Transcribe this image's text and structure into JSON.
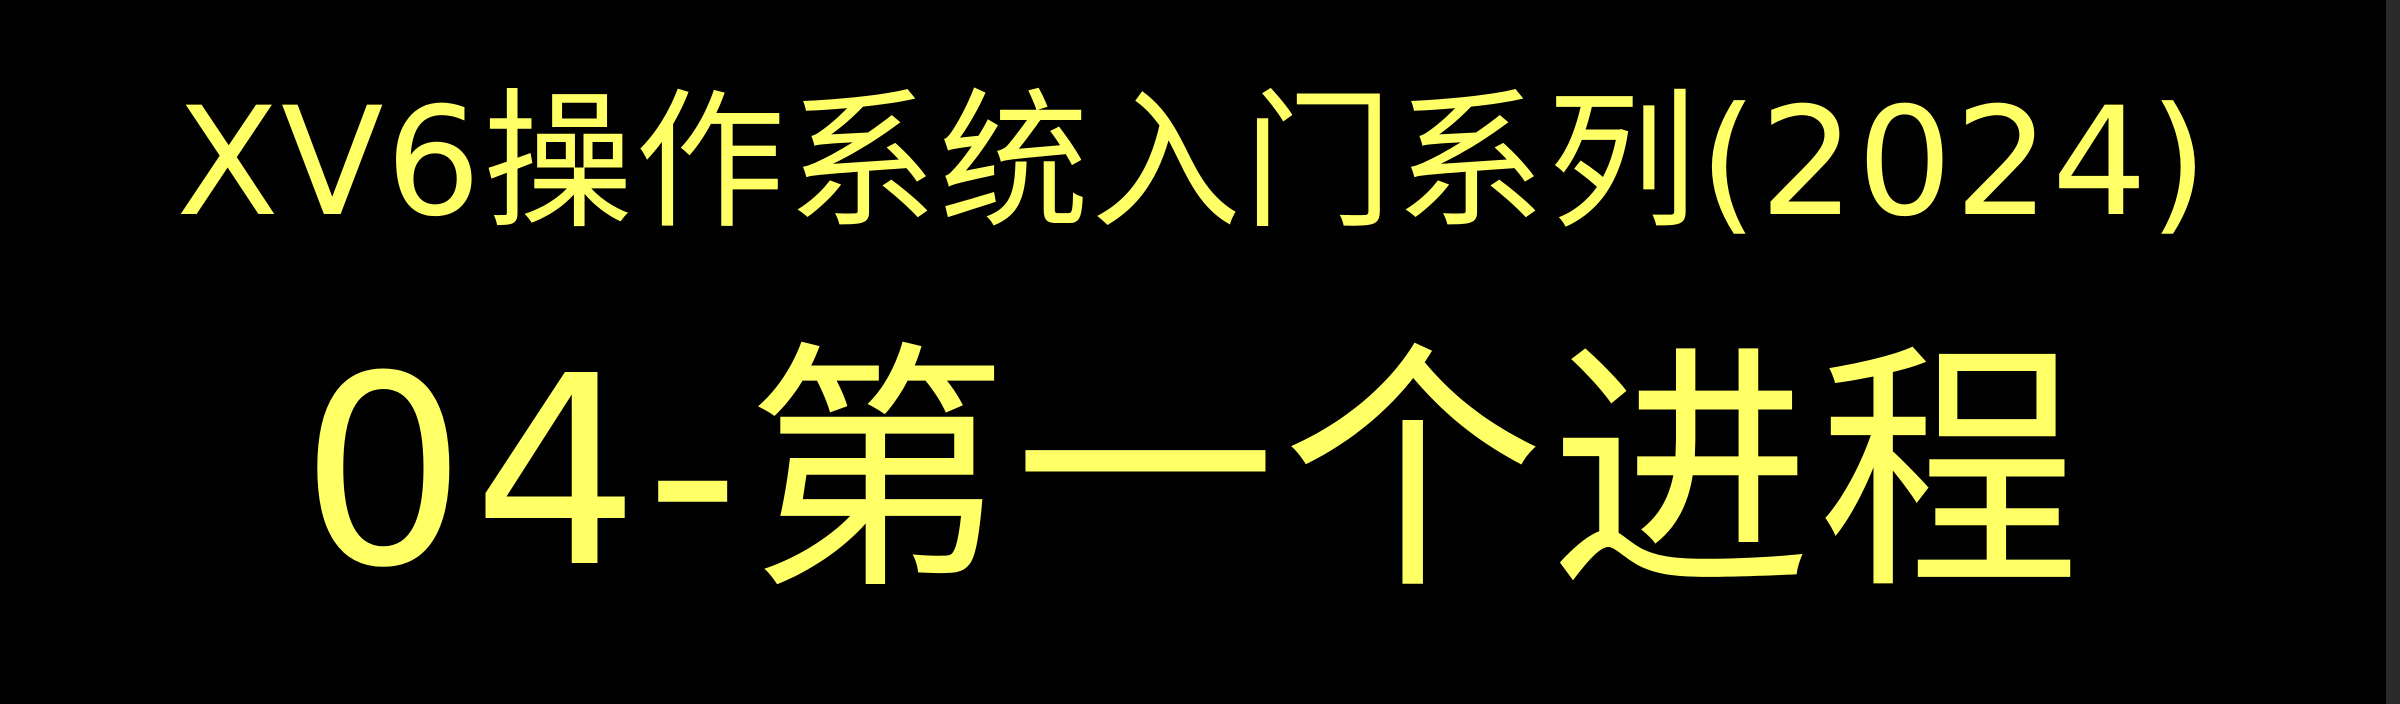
{
  "slide": {
    "series_title": "XV6操作系统入门系列(2024)",
    "episode_title": "04-第一个进程",
    "text_color": "#ffff66",
    "background_color": "#010101"
  }
}
